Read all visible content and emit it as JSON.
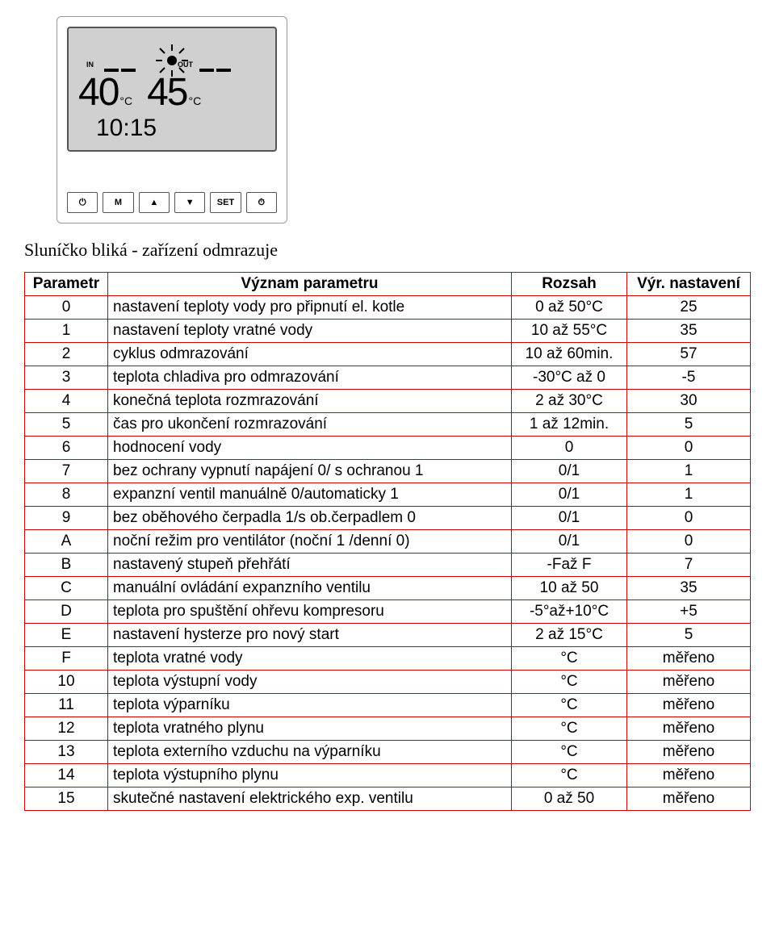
{
  "device": {
    "in_label": "IN",
    "out_label": "OUT",
    "temp_in": "40",
    "temp_out": "45",
    "unit": "°C",
    "time": "10:15",
    "buttons": {
      "power": "⏻",
      "m": "M",
      "up": "▲",
      "down": "▼",
      "set": "SET",
      "timer": "⏱"
    }
  },
  "caption": "Sluníčko bliká - zařízení odmrazuje",
  "table": {
    "headers": {
      "param": "Parametr",
      "meaning": "Význam parametru",
      "range": "Rozsah",
      "default": "Výr. nastavení"
    },
    "rows": [
      {
        "param": "0",
        "meaning": "nastavení teploty vody pro připnutí el. kotle",
        "range": "0 až 50°C",
        "default": "25"
      },
      {
        "param": "1",
        "meaning": "nastavení teploty vratné vody",
        "range": "10 až 55°C",
        "default": "35"
      },
      {
        "param": "2",
        "meaning": "cyklus odmrazování",
        "range": "10 až 60min.",
        "default": "57"
      },
      {
        "param": "3",
        "meaning": "teplota chladiva pro odmrazování",
        "range": "-30°C až 0",
        "default": "-5"
      },
      {
        "param": "4",
        "meaning": "konečná teplota rozmrazování",
        "range": "2 až 30°C",
        "default": "30"
      },
      {
        "param": "5",
        "meaning": "čas pro ukončení rozmrazování",
        "range": "1 až 12min.",
        "default": "5"
      },
      {
        "param": "6",
        "meaning": "hodnocení vody",
        "range": "0",
        "default": "0"
      },
      {
        "param": "7",
        "meaning": "bez ochrany vypnutí napájení 0/ s ochranou 1",
        "range": "0/1",
        "default": "1"
      },
      {
        "param": "8",
        "meaning": "expanzní ventil manuálně 0/automaticky 1",
        "range": "0/1",
        "default": "1"
      },
      {
        "param": "9",
        "meaning": "bez oběhového čerpadla 1/s ob.čerpadlem 0",
        "range": "0/1",
        "default": "0"
      },
      {
        "param": "A",
        "meaning": "noční režim pro ventilátor (noční 1 /denní 0)",
        "range": "0/1",
        "default": "0"
      },
      {
        "param": "B",
        "meaning": "nastavený stupeň přehřátí",
        "range": "-Faž F",
        "default": "7"
      },
      {
        "param": "C",
        "meaning": "manuální ovládání expanzního ventilu",
        "range": "10 až 50",
        "default": "35"
      },
      {
        "param": "D",
        "meaning": "teplota pro spuštění ohřevu kompresoru",
        "range": "-5°až+10°C",
        "default": "+5"
      },
      {
        "param": "E",
        "meaning": "nastavení hysterze pro nový start",
        "range": "2 až 15°C",
        "default": "5"
      },
      {
        "param": "F",
        "meaning": "teplota vratné vody",
        "range": "°C",
        "default": "měřeno"
      },
      {
        "param": "10",
        "meaning": "teplota výstupní vody",
        "range": "°C",
        "default": "měřeno"
      },
      {
        "param": "11",
        "meaning": "teplota výparníku",
        "range": "°C",
        "default": "měřeno"
      },
      {
        "param": "12",
        "meaning": "teplota vratného plynu",
        "range": "°C",
        "default": "měřeno"
      },
      {
        "param": "13",
        "meaning": "teplota externího vzduchu na výparníku",
        "range": "°C",
        "default": "měřeno"
      },
      {
        "param": "14",
        "meaning": "teplota výstupního plynu",
        "range": "°C",
        "default": "měřeno"
      },
      {
        "param": "15",
        "meaning": "skutečné nastavení elektrického exp. ventilu",
        "range": "0 až 50",
        "default": "měřeno"
      }
    ],
    "border_color": "#c00"
  }
}
